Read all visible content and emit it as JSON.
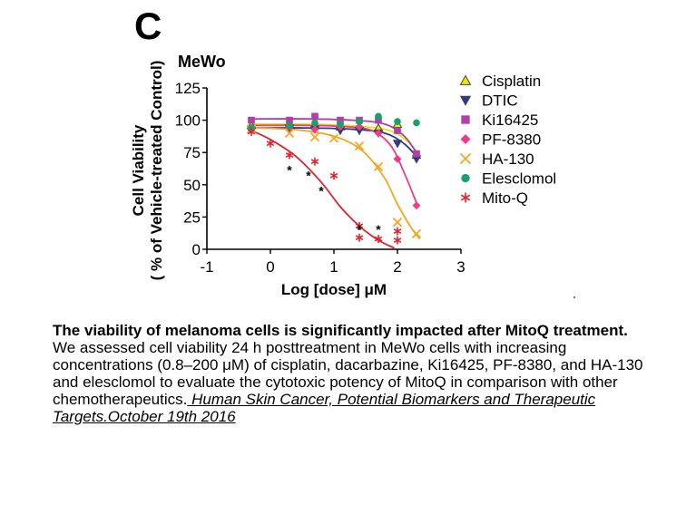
{
  "panel_label": "C",
  "chart_data": {
    "type": "scatter",
    "title": "MeWo",
    "xlabel": "Log [dose] μM",
    "ylabel": [
      "Cell Viability",
      "( % of Vehicle-treated Control)"
    ],
    "xlim": [
      -1,
      3
    ],
    "ylim": [
      0,
      125
    ],
    "xticks": [
      -1,
      0,
      1,
      2,
      3
    ],
    "yticks": [
      0,
      25,
      50,
      75,
      100,
      125
    ],
    "legend_position": "right",
    "series": [
      {
        "name": "Cisplatin",
        "marker": "triangle-up",
        "color": "#e8e800",
        "x": [
          -0.3,
          0.3,
          0.7,
          1.1,
          1.4,
          1.7,
          2.0,
          2.3
        ],
        "y": [
          96,
          97,
          96,
          95,
          95,
          94,
          97,
          73
        ],
        "fit_x": [
          -0.3,
          0.5,
          1.2,
          1.8,
          2.1,
          2.3
        ],
        "fit_y": [
          97,
          97,
          96,
          93,
          86,
          76
        ]
      },
      {
        "name": "DTIC",
        "marker": "triangle-down",
        "color": "#2b3990",
        "x": [
          -0.3,
          0.3,
          0.7,
          1.1,
          1.4,
          1.7,
          2.0,
          2.3
        ],
        "y": [
          93,
          94,
          93,
          92,
          92,
          90,
          82,
          70
        ],
        "fit_x": [
          -0.3,
          0.6,
          1.3,
          1.8,
          2.1,
          2.3
        ],
        "fit_y": [
          94,
          94,
          93,
          90,
          82,
          72
        ]
      },
      {
        "name": "Ki16425",
        "marker": "square",
        "color": "#b03fa8",
        "x": [
          -0.3,
          0.3,
          0.7,
          1.1,
          1.4,
          1.7,
          2.0,
          2.3
        ],
        "y": [
          100,
          100,
          103,
          100,
          100,
          100,
          92,
          74
        ],
        "fit_x": [
          -0.3,
          0.6,
          1.3,
          1.8,
          2.1,
          2.3
        ],
        "fit_y": [
          101,
          101,
          100,
          97,
          88,
          75
        ]
      },
      {
        "name": "PF-8380",
        "marker": "diamond",
        "color": "#e83e8c",
        "x": [
          -0.3,
          0.3,
          0.7,
          1.1,
          1.4,
          1.7,
          2.0,
          2.3
        ],
        "y": [
          94,
          95,
          93,
          95,
          95,
          90,
          70,
          34
        ],
        "fit_x": [
          -0.3,
          0.6,
          1.2,
          1.6,
          1.9,
          2.1,
          2.3
        ],
        "fit_y": [
          96,
          96,
          95,
          92,
          80,
          60,
          36
        ]
      },
      {
        "name": "HA-130",
        "marker": "x",
        "color": "#f5a623",
        "x": [
          -0.3,
          0.3,
          0.7,
          1.0,
          1.4,
          1.7,
          2.0,
          2.3
        ],
        "y": [
          93,
          90,
          87,
          86,
          80,
          64,
          21,
          12
        ],
        "fit_x": [
          -0.3,
          0.3,
          0.8,
          1.2,
          1.5,
          1.8,
          2.0,
          2.2,
          2.35
        ],
        "fit_y": [
          94,
          93,
          90,
          84,
          74,
          55,
          35,
          18,
          8
        ]
      },
      {
        "name": "Elesclomol",
        "marker": "circle",
        "color": "#1aa06d",
        "x": [
          -0.3,
          0.3,
          0.7,
          1.1,
          1.4,
          1.7,
          2.0,
          2.3
        ],
        "y": [
          94,
          96,
          98,
          97,
          99,
          103,
          99,
          98
        ],
        "fit_x": [],
        "fit_y": []
      },
      {
        "name": "Mito-Q",
        "marker": "asterisk",
        "color": "#e1232d",
        "x": [
          -0.3,
          0.0,
          0.3,
          0.7,
          1.0,
          1.4,
          1.4,
          1.7,
          2.0,
          2.0
        ],
        "y": [
          91,
          82,
          73,
          68,
          57,
          18,
          9,
          8,
          14,
          7
        ],
        "fit_x": [
          -0.3,
          0.0,
          0.4,
          0.8,
          1.1,
          1.4,
          1.7,
          1.95
        ],
        "fit_y": [
          92,
          85,
          72,
          52,
          33,
          18,
          7,
          1
        ]
      }
    ],
    "significance_marks": [
      {
        "label": "*",
        "x": 0.3,
        "y": 62
      },
      {
        "label": "*",
        "x": 0.6,
        "y": 58
      },
      {
        "label": "*",
        "x": 0.8,
        "y": 46
      },
      {
        "label": "*",
        "x": 1.4,
        "y": 16
      },
      {
        "label": "*",
        "x": 1.7,
        "y": 16
      }
    ]
  },
  "caption": {
    "title": "The viability of melanoma cells is significantly impacted after MitoQ treatment.",
    "body": "We assessed cell viability 24 h posttreatment in MeWo cells with increasing concentrations (0.8–200 μM) of cisplatin, dacarbazine, Ki16425, PF-8380, and HA-130 and elesclomol to evaluate the cytotoxic potency of MitoQ in comparison with other chemotherapeutics.",
    "source": " Human Skin Cancer, Potential Biomarkers and Therapeutic Targets.October 19th 2016"
  }
}
